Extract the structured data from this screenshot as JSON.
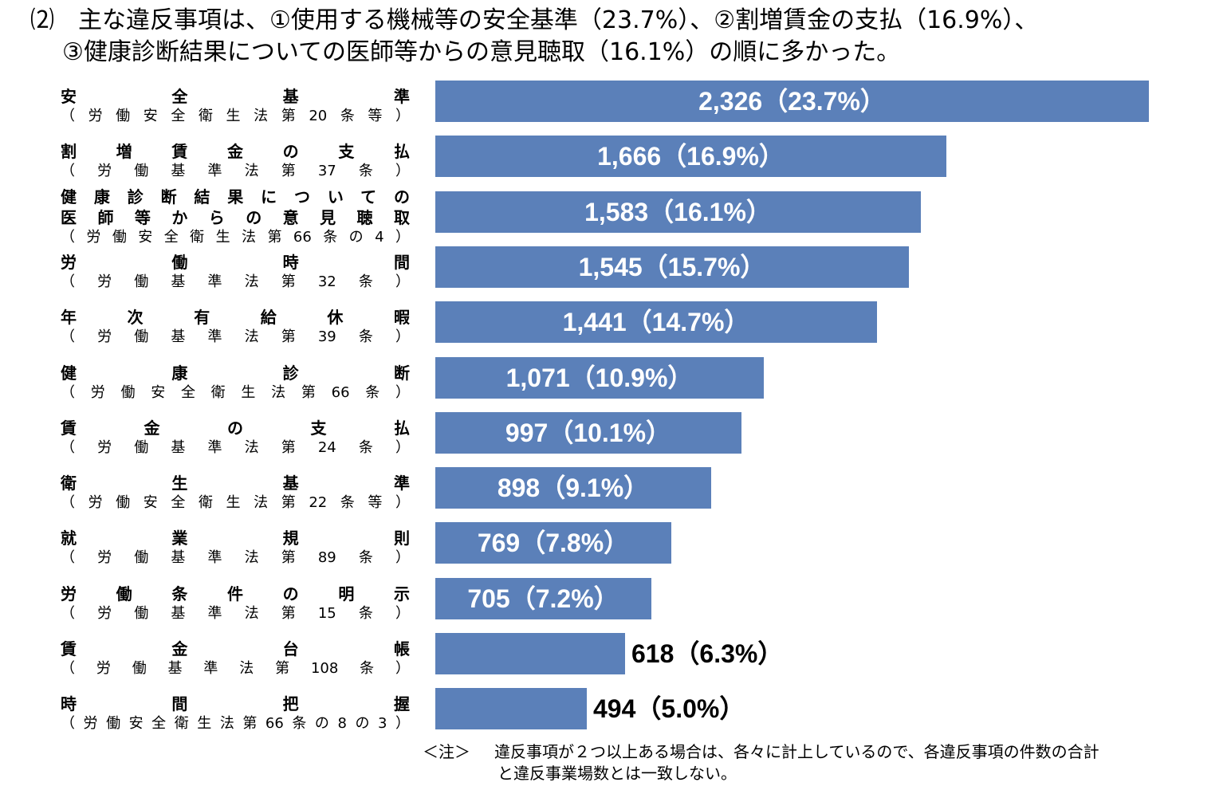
{
  "heading": {
    "line1": "⑵　主な違反事項は、①使用する機械等の安全基準（23.7%）、②割増賃金の支払（16.9%）、",
    "line2": "③健康診断結果についての医師等からの意見聴取（16.1%）の順に多かった。"
  },
  "chart_data": {
    "type": "bar",
    "orientation": "horizontal",
    "categories": [
      {
        "name_lines": [
          "安全基準"
        ],
        "law": "（労働安全衛生法第20条等）"
      },
      {
        "name_lines": [
          "割増賃金の支払"
        ],
        "law": "（労働基準法第37条）"
      },
      {
        "name_lines": [
          "健康診断結果についての",
          "医師等からの意見聴取"
        ],
        "law": "（労働安全衛生法第66条の4）"
      },
      {
        "name_lines": [
          "労働時間"
        ],
        "law": "（労働基準法第32条）"
      },
      {
        "name_lines": [
          "年次有給休暇"
        ],
        "law": "（労働基準法第39条）"
      },
      {
        "name_lines": [
          "健康診断"
        ],
        "law": "（労働安全衛生法第66条）"
      },
      {
        "name_lines": [
          "賃金の支払"
        ],
        "law": "（労働基準法第24条）"
      },
      {
        "name_lines": [
          "衛生基準"
        ],
        "law": "（労働安全衛生法第22条等）"
      },
      {
        "name_lines": [
          "就業規則"
        ],
        "law": "（労働基準法第89条）"
      },
      {
        "name_lines": [
          "労働条件の明示"
        ],
        "law": "（労働基準法第15条）"
      },
      {
        "name_lines": [
          "賃金台帳"
        ],
        "law": "（労働基準法第108条）"
      },
      {
        "name_lines": [
          "時間把握"
        ],
        "law": "（労働安全衛生法第66条の8の3）"
      }
    ],
    "values": [
      2326,
      1666,
      1583,
      1545,
      1441,
      1071,
      997,
      898,
      769,
      705,
      618,
      494
    ],
    "data_labels": [
      "2,326（23.7%）",
      "1,666（16.9%）",
      "1,583（16.1%）",
      "1,545（15.7%）",
      "1,441（14.7%）",
      "1,071（10.9%）",
      "997（10.1%）",
      "898（9.1%）",
      "769（7.8%）",
      "705（7.2%）",
      "618（6.3%）",
      "494（5.0%）"
    ],
    "bar_color": "#5b80b9",
    "label_inside_color": "#ffffff",
    "label_outside_color": "#000000",
    "xlim": [
      0,
      2326
    ]
  },
  "note": {
    "mark": "＜注＞",
    "line1": "違反事項が２つ以上ある場合は、各々に計上しているので、各違反事項の件数の合計",
    "line2": "と違反事業場数とは一致しない。"
  }
}
